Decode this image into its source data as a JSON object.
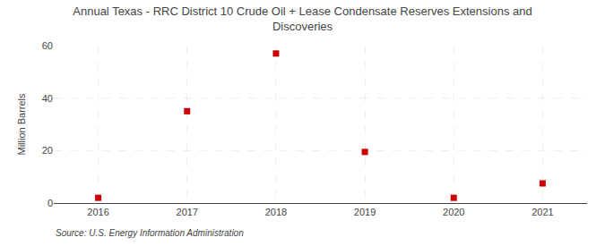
{
  "chart_data": {
    "type": "scatter",
    "title": "Annual Texas - RRC District 10 Crude Oil + Lease Condensate Reserves Extensions and\nDiscoveries",
    "ylabel": "Million Barrels",
    "annotations": [
      "Source: U.S. Energy Information Administration"
    ],
    "x": [
      2016,
      2017,
      2018,
      2019,
      2020,
      2021
    ],
    "values": [
      2.0,
      35.0,
      57.0,
      19.5,
      2.0,
      7.5
    ],
    "color": "#cc0000",
    "marker": "square",
    "xlim": [
      2015.5,
      2021.5
    ],
    "xticks": [
      2016,
      2017,
      2018,
      2019,
      2020,
      2021
    ],
    "ylim": [
      0,
      60
    ],
    "yticks": [
      0,
      20,
      40,
      60
    ],
    "grid": true
  }
}
